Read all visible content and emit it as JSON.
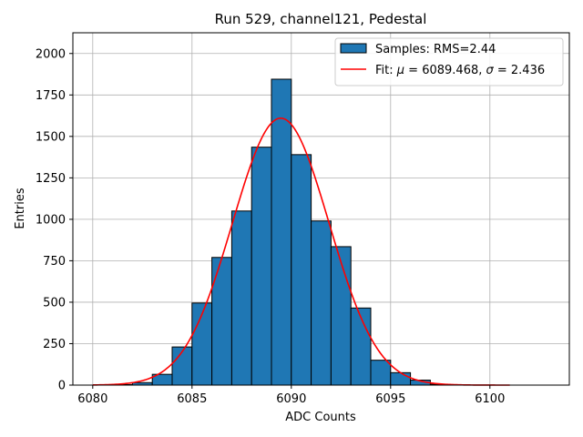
{
  "chart_data": {
    "type": "bar",
    "title": "Run 529, channel121, Pedestal",
    "xlabel": "ADC Counts",
    "ylabel": "Entries",
    "xlim": [
      6079,
      6104
    ],
    "ylim": [
      0,
      2125
    ],
    "xticks": [
      6080,
      6085,
      6090,
      6095,
      6100
    ],
    "yticks": [
      0,
      250,
      500,
      750,
      1000,
      1250,
      1500,
      1750,
      2000
    ],
    "grid": true,
    "legend_position": "top-right",
    "colors": {
      "bar_fill": "#1f77b4",
      "bar_edge": "#000000",
      "fit_line": "#ff0000",
      "grid": "#b0b0b0"
    },
    "histogram": {
      "name": "Samples: RMS=2.44",
      "bin_edges": [
        6080,
        6081,
        6082,
        6083,
        6084,
        6085,
        6086,
        6087,
        6088,
        6089,
        6090,
        6091,
        6092,
        6093,
        6094,
        6095,
        6096,
        6097,
        6098,
        6099,
        6100,
        6101
      ],
      "counts": [
        0,
        3,
        15,
        65,
        230,
        495,
        770,
        1050,
        1435,
        1845,
        1390,
        990,
        835,
        465,
        150,
        75,
        30,
        5,
        2,
        0,
        0
      ]
    },
    "fit": {
      "name_prefix": "Fit: ",
      "name_mu": "μ",
      "name_mu_value": " = 6089.468, ",
      "name_sigma": "σ",
      "name_sigma_value": " = 2.436",
      "mu": 6089.468,
      "sigma": 2.436,
      "peak": 1610,
      "x_range": [
        6080,
        6101
      ]
    }
  }
}
